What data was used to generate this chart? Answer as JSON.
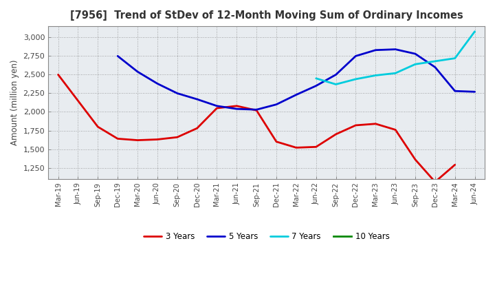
{
  "title": "[7956]  Trend of StDev of 12-Month Moving Sum of Ordinary Incomes",
  "ylabel": "Amount (million yen)",
  "fig_bg": "#ffffff",
  "plot_bg": "#e8ecf0",
  "ylim": [
    1100,
    3150
  ],
  "yticks": [
    1250,
    1500,
    1750,
    2000,
    2250,
    2500,
    2750,
    3000
  ],
  "x_labels": [
    "Mar-19",
    "Jun-19",
    "Sep-19",
    "Dec-19",
    "Mar-20",
    "Jun-20",
    "Sep-20",
    "Dec-20",
    "Mar-21",
    "Jun-21",
    "Sep-21",
    "Dec-21",
    "Mar-22",
    "Jun-22",
    "Sep-22",
    "Dec-22",
    "Mar-23",
    "Jun-23",
    "Sep-23",
    "Dec-23",
    "Mar-24",
    "Jun-24"
  ],
  "series": {
    "3 Years": {
      "color": "#dd0000",
      "linewidth": 2.0,
      "data_y": [
        2500,
        2150,
        1800,
        1640,
        1620,
        1630,
        1660,
        1780,
        2050,
        2080,
        2020,
        1600,
        1520,
        1530,
        1700,
        1820,
        1840,
        1760,
        1360,
        1060,
        1290,
        null
      ]
    },
    "5 Years": {
      "color": "#0000cc",
      "linewidth": 2.0,
      "data_y": [
        null,
        null,
        null,
        2750,
        2540,
        2380,
        2250,
        2170,
        2080,
        2040,
        2030,
        2100,
        2230,
        2350,
        2500,
        2750,
        2830,
        2840,
        2780,
        2600,
        2280,
        2270
      ]
    },
    "7 Years": {
      "color": "#00ccdd",
      "linewidth": 2.0,
      "data_y": [
        null,
        null,
        null,
        null,
        null,
        null,
        null,
        null,
        null,
        null,
        null,
        null,
        null,
        2450,
        2370,
        2440,
        2490,
        2520,
        2640,
        2680,
        2720,
        3080
      ]
    },
    "10 Years": {
      "color": "#008800",
      "linewidth": 2.0,
      "data_y": [
        null,
        null,
        null,
        null,
        null,
        null,
        null,
        null,
        null,
        null,
        null,
        null,
        null,
        null,
        null,
        null,
        null,
        null,
        null,
        null,
        null,
        null
      ]
    }
  },
  "series_order": [
    "3 Years",
    "5 Years",
    "7 Years",
    "10 Years"
  ]
}
